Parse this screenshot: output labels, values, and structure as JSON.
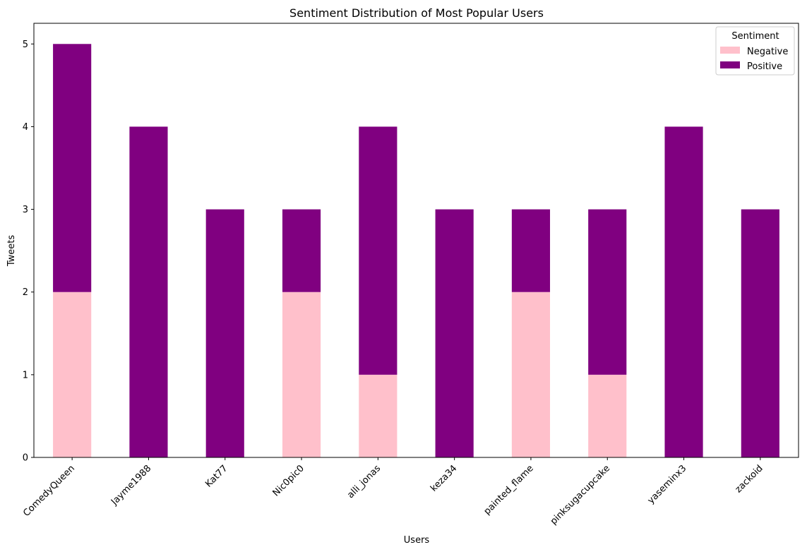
{
  "chart_data": {
    "type": "bar",
    "stacked": true,
    "title": "Sentiment Distribution of Most Popular Users",
    "xlabel": "Users",
    "ylabel": "Tweets",
    "ylim": [
      0,
      5.25
    ],
    "yticks": [
      0,
      1,
      2,
      3,
      4,
      5
    ],
    "categories": [
      "ComedyQueen",
      "Jayme1988",
      "Kat77",
      "Nic0pic0",
      "alli_jonas",
      "keza34",
      "painted_flame",
      "pinksugacupcake",
      "yaseminx3",
      "zackoid"
    ],
    "series": [
      {
        "name": "Negative",
        "color": "#ffc0cb",
        "values": [
          2,
          0,
          0,
          2,
          1,
          0,
          2,
          1,
          0,
          0
        ]
      },
      {
        "name": "Positive",
        "color": "#800080",
        "values": [
          3,
          4,
          3,
          1,
          3,
          3,
          1,
          2,
          4,
          3
        ]
      }
    ],
    "legend": {
      "title": "Sentiment",
      "position": "top-right"
    },
    "grid": false
  }
}
